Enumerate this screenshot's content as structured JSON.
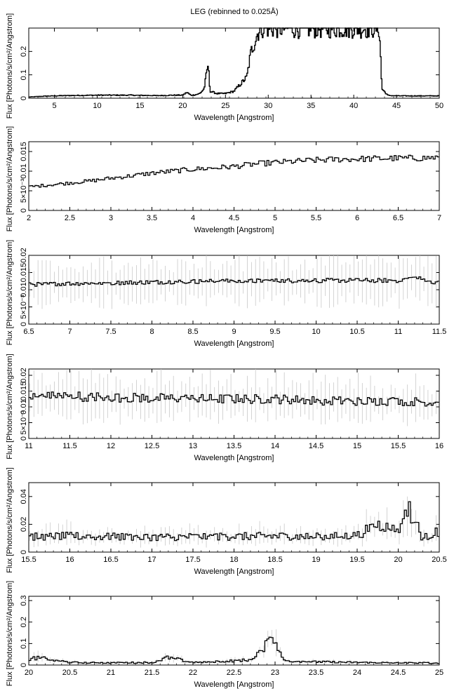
{
  "title": "LEG (rebinned to 0.025Å)",
  "chart_data": [
    {
      "type": "line",
      "xlabel": "Wavelength [Angstrom]",
      "ylabel": "Flux [Photons/s/cm²/Angstrom]",
      "xlim": [
        2,
        50
      ],
      "ylim": [
        0,
        0.3
      ],
      "xticks": [
        "5",
        "10",
        "15",
        "20",
        "25",
        "30",
        "35",
        "40",
        "45",
        "50"
      ],
      "yticks": [
        "0",
        "0.1",
        "0.2"
      ],
      "series": [
        {
          "x": [
            2,
            4,
            6,
            8,
            10,
            12,
            14,
            15,
            16,
            17,
            18,
            19,
            20,
            20.5,
            21,
            21.5,
            22,
            22.5,
            22.97,
            23.2,
            24,
            25,
            26,
            27,
            27.5,
            28,
            28.5,
            29,
            30,
            31,
            32,
            33,
            34,
            35,
            36,
            37,
            38,
            39,
            40,
            41,
            42,
            43,
            43.3,
            44,
            45,
            46,
            48,
            50
          ],
          "values": [
            0.005,
            0.009,
            0.011,
            0.012,
            0.013,
            0.013,
            0.013,
            0.012,
            0.012,
            0.011,
            0.012,
            0.013,
            0.013,
            0.025,
            0.012,
            0.015,
            0.02,
            0.04,
            0.145,
            0.03,
            0.02,
            0.02,
            0.03,
            0.07,
            0.09,
            0.2,
            0.25,
            0.3,
            0.3,
            0.3,
            0.3,
            0.3,
            0.3,
            0.3,
            0.3,
            0.3,
            0.3,
            0.3,
            0.3,
            0.3,
            0.3,
            0.3,
            0.04,
            0.012,
            0.01,
            0.01,
            0.01,
            0.01
          ]
        }
      ]
    },
    {
      "type": "line",
      "xlabel": "Wavelength [Angstrom]",
      "ylabel": "Flux [Photons/s/cm²/Angstrom]",
      "xlim": [
        2,
        7
      ],
      "ylim": [
        0,
        0.0175
      ],
      "xticks": [
        "2",
        "2.5",
        "3",
        "3.5",
        "4",
        "4.5",
        "5",
        "5.5",
        "6",
        "6.5",
        "7"
      ],
      "yticks": [
        "0",
        "5×10⁻³",
        "0.01",
        "0.015"
      ],
      "series": [
        {
          "x": [
            2,
            2.25,
            2.5,
            2.75,
            3,
            3.25,
            3.5,
            3.75,
            4,
            4.25,
            4.5,
            4.75,
            5,
            5.25,
            5.5,
            5.75,
            6,
            6.25,
            6.5,
            6.75,
            7
          ],
          "values": [
            0.006,
            0.0065,
            0.007,
            0.0075,
            0.0082,
            0.0088,
            0.0095,
            0.01,
            0.0105,
            0.0108,
            0.0112,
            0.0118,
            0.0122,
            0.0125,
            0.0128,
            0.013,
            0.0131,
            0.0132,
            0.0133,
            0.0133,
            0.0135
          ]
        }
      ]
    },
    {
      "type": "line",
      "xlabel": "Wavelength [Angstrom]",
      "ylabel": "Flux [Photons/s/cm²/Angstrom]",
      "xlim": [
        6.5,
        11.5
      ],
      "ylim": [
        0,
        0.02
      ],
      "xticks": [
        "6.5",
        "7",
        "7.5",
        "8",
        "8.5",
        "9",
        "9.5",
        "10",
        "10.5",
        "11",
        "11.5"
      ],
      "yticks": [
        "0",
        "5×10⁻³",
        "0.01",
        "0.015",
        "0.02"
      ],
      "series": [
        {
          "x": [
            6.5,
            7,
            7.5,
            8,
            8.5,
            9,
            9.5,
            10,
            10.5,
            11,
            11.2,
            11.5
          ],
          "values": [
            0.0115,
            0.0118,
            0.012,
            0.0122,
            0.0124,
            0.0125,
            0.0126,
            0.0127,
            0.0127,
            0.0127,
            0.0135,
            0.012
          ]
        }
      ]
    },
    {
      "type": "line",
      "xlabel": "Wavelength [Angstrom]",
      "ylabel": "Flux [Photons/s/cm²/Angstrom]",
      "xlim": [
        11,
        16
      ],
      "ylim": [
        0,
        0.022
      ],
      "xticks": [
        "11",
        "11.5",
        "12",
        "12.5",
        "13",
        "13.5",
        "14",
        "14.5",
        "15",
        "15.5",
        "16"
      ],
      "yticks": [
        "0",
        "5×10⁻³",
        "0.01",
        "0.015",
        "0.02"
      ],
      "series": [
        {
          "x": [
            11,
            11.5,
            12,
            12.5,
            13,
            13.5,
            14,
            14.5,
            15,
            15.5,
            16
          ],
          "values": [
            0.013,
            0.0135,
            0.013,
            0.0128,
            0.0125,
            0.0125,
            0.0125,
            0.012,
            0.0118,
            0.0118,
            0.0115
          ]
        }
      ]
    },
    {
      "type": "line",
      "xlabel": "Wavelength [Angstrom]",
      "ylabel": "Flux [Photons/s/cm²/Angstrom]",
      "xlim": [
        15.5,
        20.5
      ],
      "ylim": [
        0,
        0.05
      ],
      "xticks": [
        "15.5",
        "16",
        "16.5",
        "17",
        "17.5",
        "18",
        "18.5",
        "19",
        "19.5",
        "20",
        "20.5"
      ],
      "yticks": [
        "0",
        "0.02",
        "0.04"
      ],
      "series": [
        {
          "x": [
            15.5,
            16,
            16.5,
            17,
            17.5,
            18,
            18.5,
            19,
            19.5,
            19.75,
            20,
            20.1,
            20.3,
            20.5
          ],
          "values": [
            0.011,
            0.0115,
            0.011,
            0.0108,
            0.011,
            0.0112,
            0.0115,
            0.011,
            0.012,
            0.02,
            0.015,
            0.035,
            0.01,
            0.015
          ]
        }
      ]
    },
    {
      "type": "line",
      "xlabel": "Wavelength [Angstrom]",
      "ylabel": "Flux [Photons/s/cm²/Angstrom]",
      "xlim": [
        20,
        25
      ],
      "ylim": [
        0,
        0.32
      ],
      "xticks": [
        "20",
        "20.5",
        "21",
        "21.5",
        "22",
        "22.5",
        "23",
        "23.5",
        "24",
        "24.5",
        "25"
      ],
      "yticks": [
        "0",
        "0.1",
        "0.2",
        "0.3"
      ],
      "series": [
        {
          "x": [
            20,
            20.1,
            20.5,
            21,
            21.5,
            21.7,
            22,
            22.5,
            22.75,
            22.97,
            23.1,
            23.5,
            24,
            24.5,
            25
          ],
          "values": [
            0.025,
            0.035,
            0.012,
            0.01,
            0.012,
            0.035,
            0.012,
            0.02,
            0.025,
            0.145,
            0.02,
            0.015,
            0.012,
            0.01,
            0.01
          ]
        }
      ]
    }
  ]
}
